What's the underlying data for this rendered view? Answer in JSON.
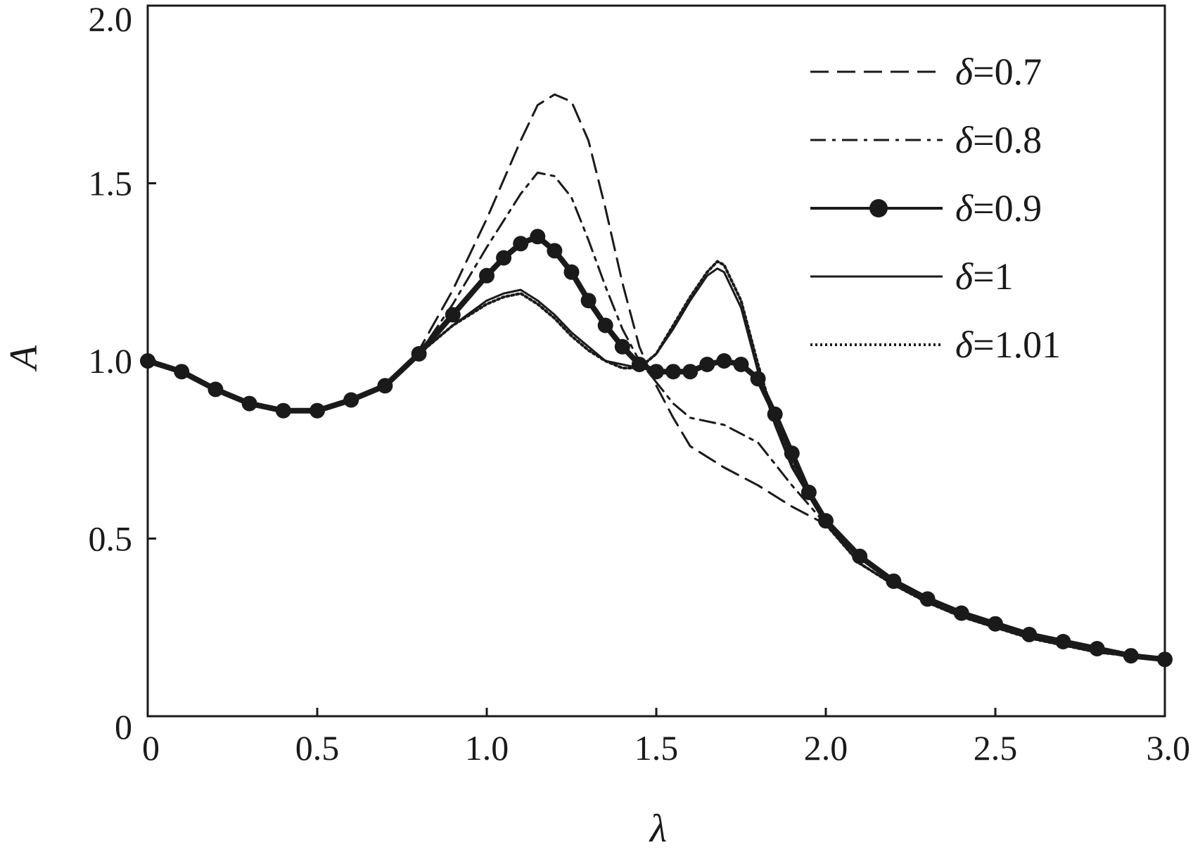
{
  "chart_data": {
    "type": "line",
    "title": "",
    "xlabel": "λ",
    "ylabel": "A",
    "xlim": [
      0,
      3.0
    ],
    "ylim": [
      0,
      2.0
    ],
    "x_ticks": [
      {
        "value": 0,
        "label": "0"
      },
      {
        "value": 0.5,
        "label": "0.5"
      },
      {
        "value": 1.0,
        "label": "1.0"
      },
      {
        "value": 1.5,
        "label": "1.5"
      },
      {
        "value": 2.0,
        "label": "2.0"
      },
      {
        "value": 2.5,
        "label": "2.5"
      },
      {
        "value": 3.0,
        "label": "3.0"
      }
    ],
    "y_ticks": [
      {
        "value": 0,
        "label": "0"
      },
      {
        "value": 0.5,
        "label": "0.5"
      },
      {
        "value": 1.0,
        "label": "1.0"
      },
      {
        "value": 1.5,
        "label": "1.5"
      },
      {
        "value": 2.0,
        "label": "2.0"
      }
    ],
    "grid": false,
    "legend_position": "top-right",
    "series": [
      {
        "name": "δ=0.7",
        "style": "dashed",
        "color": "#1a1a1a",
        "x": [
          0,
          0.1,
          0.2,
          0.3,
          0.4,
          0.5,
          0.6,
          0.7,
          0.8,
          0.9,
          1.0,
          1.1,
          1.15,
          1.2,
          1.25,
          1.3,
          1.35,
          1.4,
          1.45,
          1.5,
          1.55,
          1.6,
          1.7,
          1.8,
          1.9,
          2.0,
          2.1,
          2.2,
          2.3,
          2.4,
          2.5,
          2.6,
          2.7,
          2.8,
          2.9,
          3.0
        ],
        "y": [
          1.0,
          0.97,
          0.92,
          0.88,
          0.86,
          0.86,
          0.89,
          0.93,
          1.03,
          1.2,
          1.4,
          1.62,
          1.72,
          1.75,
          1.73,
          1.62,
          1.43,
          1.22,
          1.04,
          0.93,
          0.84,
          0.76,
          0.7,
          0.65,
          0.59,
          0.54,
          0.43,
          0.37,
          0.32,
          0.28,
          0.25,
          0.22,
          0.2,
          0.18,
          0.17,
          0.16
        ]
      },
      {
        "name": "δ=0.8",
        "style": "dashdot",
        "color": "#1a1a1a",
        "x": [
          0,
          0.1,
          0.2,
          0.3,
          0.4,
          0.5,
          0.6,
          0.7,
          0.8,
          0.9,
          1.0,
          1.1,
          1.15,
          1.2,
          1.25,
          1.3,
          1.35,
          1.4,
          1.45,
          1.5,
          1.55,
          1.6,
          1.7,
          1.8,
          1.9,
          2.0,
          2.1,
          2.2,
          2.3,
          2.4,
          2.5,
          2.6,
          2.7,
          2.8,
          2.9,
          3.0
        ],
        "y": [
          1.0,
          0.97,
          0.92,
          0.88,
          0.86,
          0.86,
          0.89,
          0.93,
          1.02,
          1.16,
          1.32,
          1.47,
          1.53,
          1.52,
          1.46,
          1.34,
          1.21,
          1.09,
          1.0,
          0.94,
          0.88,
          0.84,
          0.82,
          0.77,
          0.65,
          0.54,
          0.43,
          0.37,
          0.32,
          0.28,
          0.25,
          0.22,
          0.2,
          0.18,
          0.17,
          0.16
        ]
      },
      {
        "name": "δ=0.9",
        "style": "solid-marker",
        "color": "#1a1a1a",
        "x": [
          0,
          0.1,
          0.2,
          0.3,
          0.4,
          0.5,
          0.6,
          0.7,
          0.8,
          0.9,
          1.0,
          1.05,
          1.1,
          1.15,
          1.2,
          1.25,
          1.3,
          1.35,
          1.4,
          1.45,
          1.5,
          1.55,
          1.6,
          1.65,
          1.7,
          1.75,
          1.8,
          1.85,
          1.9,
          1.95,
          2.0,
          2.1,
          2.2,
          2.3,
          2.4,
          2.5,
          2.6,
          2.7,
          2.8,
          2.9,
          3.0
        ],
        "y": [
          1.0,
          0.97,
          0.92,
          0.88,
          0.86,
          0.86,
          0.89,
          0.93,
          1.02,
          1.13,
          1.24,
          1.29,
          1.33,
          1.35,
          1.31,
          1.25,
          1.17,
          1.1,
          1.04,
          0.99,
          0.97,
          0.97,
          0.97,
          0.99,
          1.0,
          0.99,
          0.95,
          0.85,
          0.74,
          0.63,
          0.55,
          0.45,
          0.38,
          0.33,
          0.29,
          0.26,
          0.23,
          0.21,
          0.19,
          0.17,
          0.16
        ]
      },
      {
        "name": "δ=1",
        "style": "solid",
        "color": "#1a1a1a",
        "x": [
          0,
          0.1,
          0.2,
          0.3,
          0.4,
          0.5,
          0.6,
          0.7,
          0.8,
          0.9,
          1.0,
          1.05,
          1.1,
          1.15,
          1.2,
          1.25,
          1.3,
          1.35,
          1.4,
          1.45,
          1.5,
          1.55,
          1.6,
          1.65,
          1.68,
          1.7,
          1.75,
          1.8,
          1.85,
          1.9,
          2.0,
          2.1,
          2.2,
          2.3,
          2.4,
          2.5,
          2.6,
          2.7,
          2.8,
          2.9,
          3.0
        ],
        "y": [
          1.0,
          0.97,
          0.92,
          0.88,
          0.86,
          0.86,
          0.89,
          0.93,
          1.02,
          1.1,
          1.17,
          1.19,
          1.2,
          1.17,
          1.13,
          1.08,
          1.04,
          1.0,
          0.99,
          0.98,
          1.02,
          1.09,
          1.17,
          1.24,
          1.26,
          1.25,
          1.15,
          0.97,
          0.82,
          0.7,
          0.54,
          0.43,
          0.37,
          0.32,
          0.28,
          0.25,
          0.22,
          0.2,
          0.18,
          0.17,
          0.16
        ]
      },
      {
        "name": "δ=1.01",
        "style": "dotted",
        "color": "#1a1a1a",
        "x": [
          0,
          0.1,
          0.2,
          0.3,
          0.4,
          0.5,
          0.6,
          0.7,
          0.8,
          0.9,
          1.0,
          1.05,
          1.1,
          1.15,
          1.2,
          1.25,
          1.3,
          1.35,
          1.4,
          1.45,
          1.5,
          1.55,
          1.6,
          1.65,
          1.68,
          1.7,
          1.75,
          1.8,
          1.85,
          1.9,
          2.0,
          2.1,
          2.2,
          2.3,
          2.4,
          2.5,
          2.6,
          2.7,
          2.8,
          2.9,
          3.0
        ],
        "y": [
          1.0,
          0.97,
          0.92,
          0.88,
          0.86,
          0.86,
          0.89,
          0.93,
          1.02,
          1.1,
          1.16,
          1.18,
          1.19,
          1.16,
          1.12,
          1.07,
          1.03,
          1.0,
          0.98,
          0.98,
          1.02,
          1.1,
          1.18,
          1.25,
          1.28,
          1.27,
          1.17,
          0.99,
          0.83,
          0.71,
          0.54,
          0.43,
          0.37,
          0.32,
          0.28,
          0.25,
          0.22,
          0.2,
          0.18,
          0.17,
          0.16
        ]
      }
    ]
  }
}
